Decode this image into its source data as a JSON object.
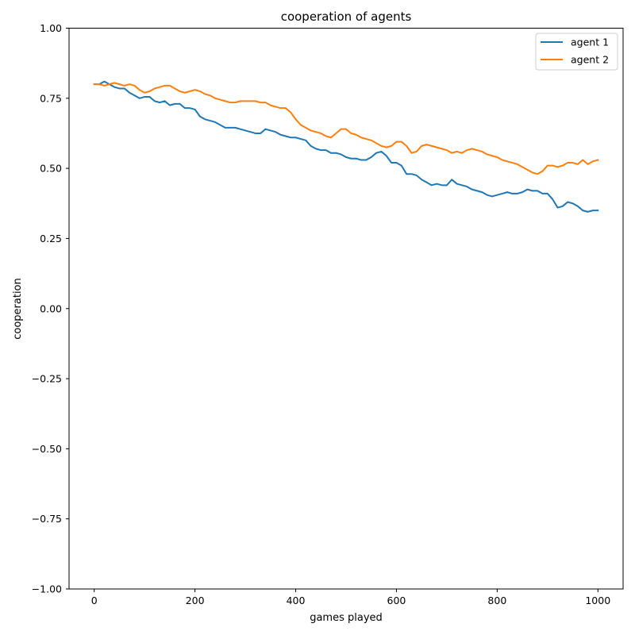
{
  "chart_data": {
    "type": "line",
    "title": "cooperation of agents",
    "xlabel": "games played",
    "ylabel": "cooperation",
    "xlim": [
      -50,
      1050
    ],
    "ylim": [
      -1.0,
      1.0
    ],
    "xticks": [
      0,
      200,
      400,
      600,
      800,
      1000
    ],
    "xtick_labels": [
      "0",
      "200",
      "400",
      "600",
      "800",
      "1000"
    ],
    "yticks": [
      -1.0,
      -0.75,
      -0.5,
      -0.25,
      0.0,
      0.25,
      0.5,
      0.75,
      1.0
    ],
    "ytick_labels": [
      "−1.00",
      "−0.75",
      "−0.50",
      "−0.25",
      "0.00",
      "0.25",
      "0.50",
      "0.75",
      "1.00"
    ],
    "grid": false,
    "legend_position": "top-right",
    "series": [
      {
        "name": "agent 1",
        "color": "#1f77b4",
        "x": [
          0,
          10,
          20,
          25,
          30,
          40,
          50,
          60,
          70,
          80,
          90,
          100,
          110,
          120,
          130,
          140,
          150,
          160,
          170,
          180,
          190,
          200,
          210,
          220,
          230,
          240,
          250,
          260,
          270,
          280,
          290,
          300,
          310,
          320,
          330,
          340,
          350,
          360,
          370,
          380,
          390,
          400,
          410,
          420,
          430,
          440,
          450,
          460,
          470,
          480,
          490,
          500,
          510,
          520,
          530,
          540,
          550,
          560,
          570,
          580,
          590,
          600,
          610,
          620,
          630,
          640,
          650,
          660,
          670,
          680,
          690,
          700,
          710,
          720,
          730,
          740,
          750,
          760,
          770,
          780,
          790,
          800,
          810,
          820,
          830,
          840,
          850,
          860,
          870,
          880,
          890,
          900,
          910,
          920,
          930,
          940,
          950,
          960,
          970,
          980,
          990,
          1000
        ],
        "values": [
          0.8,
          0.8,
          0.81,
          0.805,
          0.8,
          0.79,
          0.785,
          0.785,
          0.77,
          0.76,
          0.75,
          0.755,
          0.755,
          0.74,
          0.735,
          0.74,
          0.725,
          0.73,
          0.73,
          0.715,
          0.715,
          0.71,
          0.685,
          0.675,
          0.67,
          0.665,
          0.655,
          0.645,
          0.645,
          0.645,
          0.64,
          0.635,
          0.63,
          0.625,
          0.625,
          0.64,
          0.635,
          0.63,
          0.62,
          0.615,
          0.61,
          0.61,
          0.605,
          0.6,
          0.58,
          0.57,
          0.565,
          0.565,
          0.555,
          0.555,
          0.55,
          0.54,
          0.535,
          0.535,
          0.53,
          0.53,
          0.54,
          0.555,
          0.56,
          0.545,
          0.52,
          0.52,
          0.51,
          0.48,
          0.48,
          0.475,
          0.46,
          0.45,
          0.44,
          0.445,
          0.44,
          0.44,
          0.46,
          0.445,
          0.44,
          0.435,
          0.425,
          0.42,
          0.415,
          0.405,
          0.4,
          0.405,
          0.41,
          0.415,
          0.41,
          0.41,
          0.415,
          0.425,
          0.42,
          0.42,
          0.41,
          0.41,
          0.39,
          0.36,
          0.365,
          0.38,
          0.375,
          0.365,
          0.35,
          0.345,
          0.35,
          0.35
        ]
      },
      {
        "name": "agent 2",
        "color": "#ff7f0e",
        "x": [
          0,
          10,
          20,
          30,
          40,
          50,
          60,
          70,
          80,
          90,
          100,
          110,
          120,
          130,
          140,
          150,
          160,
          170,
          180,
          190,
          200,
          210,
          220,
          230,
          240,
          250,
          260,
          270,
          280,
          290,
          300,
          310,
          320,
          330,
          340,
          350,
          360,
          370,
          380,
          390,
          400,
          410,
          420,
          430,
          440,
          450,
          460,
          470,
          480,
          490,
          500,
          510,
          520,
          530,
          540,
          550,
          560,
          570,
          580,
          590,
          600,
          610,
          620,
          630,
          640,
          650,
          660,
          670,
          680,
          690,
          700,
          710,
          720,
          730,
          740,
          750,
          760,
          770,
          780,
          790,
          800,
          810,
          820,
          830,
          840,
          850,
          860,
          870,
          880,
          890,
          900,
          910,
          920,
          930,
          940,
          950,
          960,
          970,
          980,
          990,
          1000
        ],
        "values": [
          0.8,
          0.8,
          0.795,
          0.8,
          0.805,
          0.8,
          0.795,
          0.8,
          0.795,
          0.78,
          0.77,
          0.775,
          0.785,
          0.79,
          0.795,
          0.795,
          0.785,
          0.775,
          0.77,
          0.775,
          0.78,
          0.775,
          0.765,
          0.76,
          0.75,
          0.745,
          0.74,
          0.735,
          0.735,
          0.74,
          0.74,
          0.74,
          0.74,
          0.735,
          0.735,
          0.725,
          0.72,
          0.715,
          0.715,
          0.7,
          0.675,
          0.655,
          0.645,
          0.635,
          0.63,
          0.625,
          0.615,
          0.61,
          0.625,
          0.64,
          0.64,
          0.625,
          0.62,
          0.61,
          0.605,
          0.6,
          0.59,
          0.58,
          0.575,
          0.58,
          0.595,
          0.595,
          0.58,
          0.555,
          0.56,
          0.58,
          0.585,
          0.58,
          0.575,
          0.57,
          0.565,
          0.555,
          0.56,
          0.555,
          0.565,
          0.57,
          0.565,
          0.56,
          0.55,
          0.545,
          0.54,
          0.53,
          0.525,
          0.52,
          0.515,
          0.505,
          0.495,
          0.485,
          0.48,
          0.49,
          0.51,
          0.51,
          0.505,
          0.51,
          0.52,
          0.52,
          0.515,
          0.53,
          0.515,
          0.525,
          0.53
        ]
      }
    ]
  }
}
